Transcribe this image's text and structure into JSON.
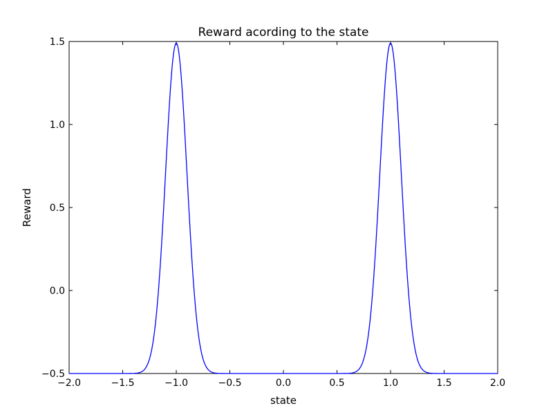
{
  "chart_data": {
    "type": "line",
    "title": "Reward acording to the state",
    "xlabel": "state",
    "ylabel": "Reward",
    "xlim": [
      -2.0,
      2.0
    ],
    "ylim": [
      -0.5,
      1.5
    ],
    "xticks": [
      -2.0,
      -1.5,
      -1.0,
      -0.5,
      0.0,
      0.5,
      1.0,
      1.5,
      2.0
    ],
    "xtick_labels": [
      "−2.0",
      "−1.5",
      "−1.0",
      "−0.5",
      "0.0",
      "0.5",
      "1.0",
      "1.5",
      "2.0"
    ],
    "yticks": [
      -0.5,
      0.0,
      0.5,
      1.0,
      1.5
    ],
    "ytick_labels": [
      "−0.5",
      "0.0",
      "0.5",
      "1.0",
      "1.5"
    ],
    "grid": false,
    "series": [
      {
        "color": "#0000ff",
        "x": [
          -2.0,
          -1.6,
          -1.4,
          -1.35,
          -1.3,
          -1.25,
          -1.2,
          -1.15,
          -1.1,
          -1.05,
          -1.0,
          -0.95,
          -0.9,
          -0.85,
          -0.8,
          -0.75,
          -0.7,
          -0.65,
          -0.6,
          -0.4,
          0.0,
          0.4,
          0.6,
          0.65,
          0.7,
          0.75,
          0.8,
          0.85,
          0.9,
          0.95,
          1.0,
          1.05,
          1.1,
          1.15,
          1.2,
          1.25,
          1.3,
          1.35,
          1.4,
          1.6,
          2.0
        ],
        "y": [
          -0.5,
          -0.5,
          -0.499,
          -0.497,
          -0.48,
          -0.43,
          -0.3,
          -0.04,
          0.4,
          1.07,
          1.49,
          1.07,
          0.4,
          -0.04,
          -0.3,
          -0.43,
          -0.48,
          -0.497,
          -0.499,
          -0.5,
          -0.5,
          -0.5,
          -0.499,
          -0.497,
          -0.48,
          -0.43,
          -0.3,
          -0.04,
          0.4,
          1.07,
          1.49,
          1.07,
          0.4,
          -0.04,
          -0.3,
          -0.43,
          -0.48,
          -0.497,
          -0.499,
          -0.5,
          -0.5
        ]
      }
    ]
  }
}
